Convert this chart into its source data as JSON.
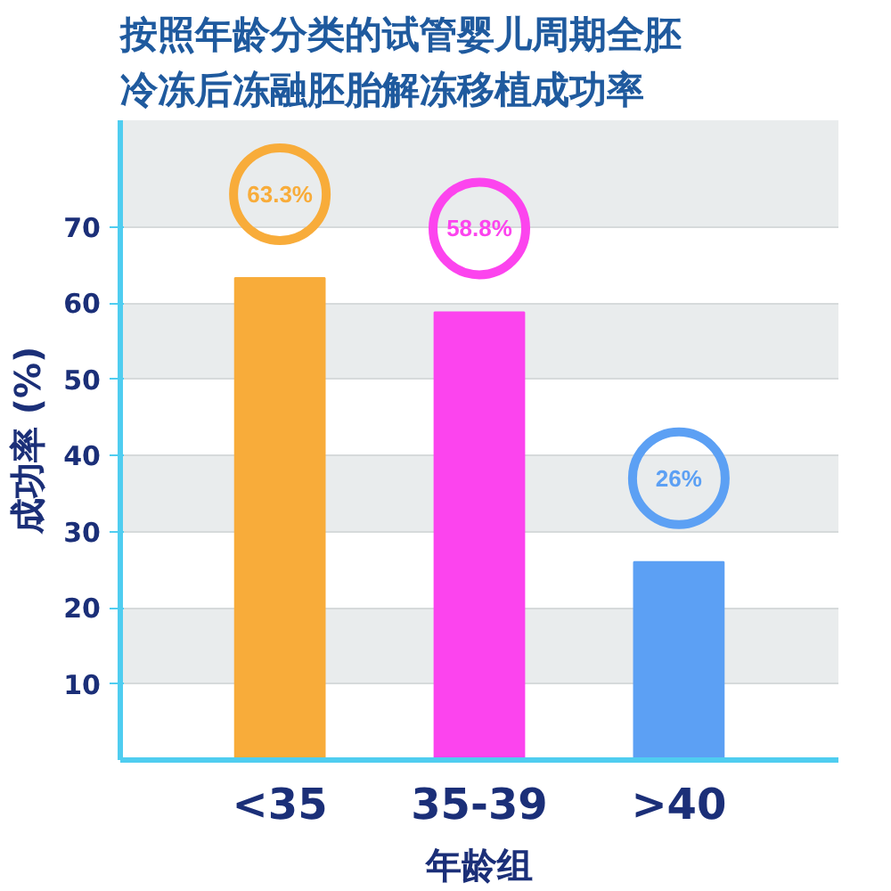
{
  "chart_data": {
    "type": "bar",
    "title": "按照年龄分类的试管婴儿周期全胚冷冻后冻融胚胎解冻移植成功率",
    "xlabel": "年龄组",
    "ylabel": "成功率 (%)",
    "categories": [
      "<35",
      "35-39",
      ">40"
    ],
    "values": [
      63.3,
      58.8,
      26
    ],
    "colors": [
      "#f8ac3a",
      "#fc44ee",
      "#5ca0f4"
    ],
    "value_labels": [
      "63.3%",
      "58.8%",
      "26%"
    ],
    "ylim": [
      0,
      84
    ],
    "yticks": [
      10,
      20,
      30,
      40,
      50,
      60,
      70
    ],
    "grid": "y"
  }
}
